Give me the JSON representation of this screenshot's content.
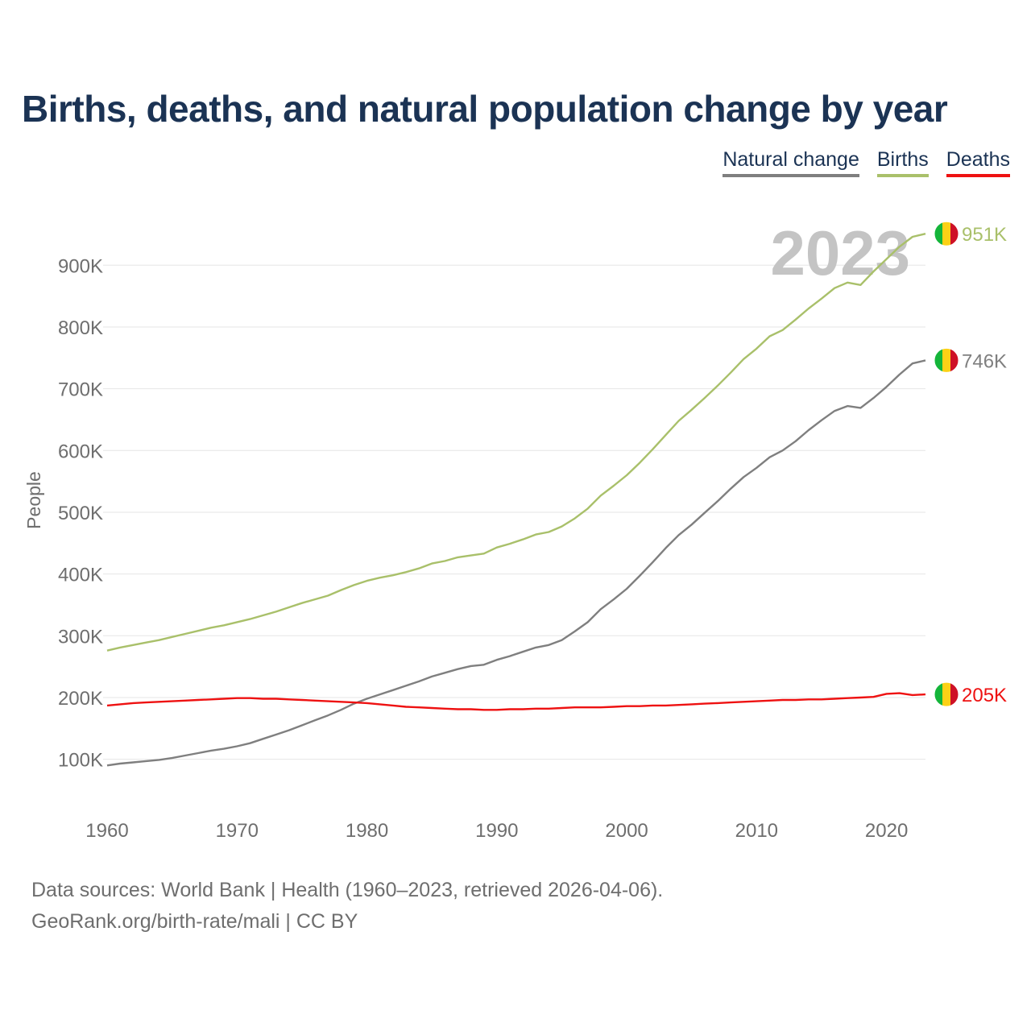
{
  "title": "Births, deaths, and natural population change by year",
  "legend": [
    {
      "label": "Natural change",
      "color": "#7f7f7f"
    },
    {
      "label": "Births",
      "color": "#a9c06a"
    },
    {
      "label": "Deaths",
      "color": "#ee1111"
    }
  ],
  "year_overlay": "2023",
  "source_line1": "Data sources: World Bank | Health (1960–2023, retrieved 2026-04-06).",
  "source_line2": "GeoRank.org/birth-rate/mali | CC BY",
  "flag_colors": [
    "#14b53a",
    "#fcd116",
    "#ce1126"
  ],
  "chart_data": {
    "type": "line",
    "title": "Births, deaths, and natural population change by year",
    "xlabel": "",
    "ylabel": "People",
    "xlim": [
      1960,
      2023
    ],
    "ylim": [
      0,
      1000000
    ],
    "grid": true,
    "legend_position": "top-right",
    "x_ticks": [
      {
        "value": 1960,
        "label": "1960"
      },
      {
        "value": 1970,
        "label": "1970"
      },
      {
        "value": 1980,
        "label": "1980"
      },
      {
        "value": 1990,
        "label": "1990"
      },
      {
        "value": 2000,
        "label": "2000"
      },
      {
        "value": 2010,
        "label": "2010"
      },
      {
        "value": 2020,
        "label": "2020"
      }
    ],
    "y_ticks": [
      {
        "value": 100000,
        "label": "100K"
      },
      {
        "value": 200000,
        "label": "200K"
      },
      {
        "value": 300000,
        "label": "300K"
      },
      {
        "value": 400000,
        "label": "400K"
      },
      {
        "value": 500000,
        "label": "500K"
      },
      {
        "value": 600000,
        "label": "600K"
      },
      {
        "value": 700000,
        "label": "700K"
      },
      {
        "value": 800000,
        "label": "800K"
      },
      {
        "value": 900000,
        "label": "900K"
      }
    ],
    "x": [
      1960,
      1961,
      1962,
      1963,
      1964,
      1965,
      1966,
      1967,
      1968,
      1969,
      1970,
      1971,
      1972,
      1973,
      1974,
      1975,
      1976,
      1977,
      1978,
      1979,
      1980,
      1981,
      1982,
      1983,
      1984,
      1985,
      1986,
      1987,
      1988,
      1989,
      1990,
      1991,
      1992,
      1993,
      1994,
      1995,
      1996,
      1997,
      1998,
      1999,
      2000,
      2001,
      2002,
      2003,
      2004,
      2005,
      2006,
      2007,
      2008,
      2009,
      2010,
      2011,
      2012,
      2013,
      2014,
      2015,
      2016,
      2017,
      2018,
      2019,
      2020,
      2021,
      2022,
      2023
    ],
    "series": [
      {
        "name": "Births",
        "color": "#a9c06a",
        "end_label": "951K",
        "values": [
          276000,
          281000,
          285000,
          289000,
          293000,
          298000,
          303000,
          308000,
          313000,
          317000,
          322000,
          327000,
          333000,
          339000,
          346000,
          353000,
          359000,
          365000,
          374000,
          382000,
          389000,
          394000,
          398000,
          403000,
          409000,
          417000,
          421000,
          427000,
          430000,
          433000,
          443000,
          449000,
          456000,
          464000,
          468000,
          477000,
          490000,
          506000,
          527000,
          543000,
          560000,
          580000,
          602000,
          625000,
          648000,
          666000,
          685000,
          705000,
          726000,
          748000,
          765000,
          785000,
          795000,
          812000,
          830000,
          846000,
          863000,
          872000,
          868000,
          890000,
          910000,
          930000,
          946000,
          951000
        ]
      },
      {
        "name": "Natural change",
        "color": "#7f7f7f",
        "end_label": "746K",
        "values": [
          90000,
          93000,
          95000,
          97000,
          99000,
          102000,
          106000,
          110000,
          114000,
          117000,
          121000,
          126000,
          133000,
          140000,
          147000,
          155000,
          163000,
          171000,
          180000,
          190000,
          198000,
          205000,
          212000,
          219000,
          226000,
          234000,
          240000,
          246000,
          251000,
          253000,
          261000,
          267000,
          274000,
          281000,
          285000,
          293000,
          307000,
          322000,
          343000,
          359000,
          376000,
          397000,
          419000,
          442000,
          463000,
          480000,
          499000,
          518000,
          538000,
          557000,
          572000,
          589000,
          600000,
          615000,
          633000,
          649000,
          664000,
          672000,
          669000,
          685000,
          703000,
          723000,
          741000,
          746000
        ]
      },
      {
        "name": "Deaths",
        "color": "#ee1111",
        "end_label": "205K",
        "values": [
          187000,
          189000,
          191000,
          192000,
          193000,
          194000,
          195000,
          196000,
          197000,
          198000,
          199000,
          199000,
          198000,
          198000,
          197000,
          196000,
          195000,
          194000,
          193000,
          192000,
          191000,
          189000,
          187000,
          185000,
          184000,
          183000,
          182000,
          181000,
          181000,
          180000,
          180000,
          181000,
          181000,
          182000,
          182000,
          183000,
          184000,
          184000,
          184000,
          185000,
          186000,
          186000,
          187000,
          187000,
          188000,
          189000,
          190000,
          191000,
          192000,
          193000,
          194000,
          195000,
          196000,
          196000,
          197000,
          197000,
          198000,
          199000,
          200000,
          201000,
          206000,
          207000,
          204000,
          205000
        ]
      }
    ]
  }
}
